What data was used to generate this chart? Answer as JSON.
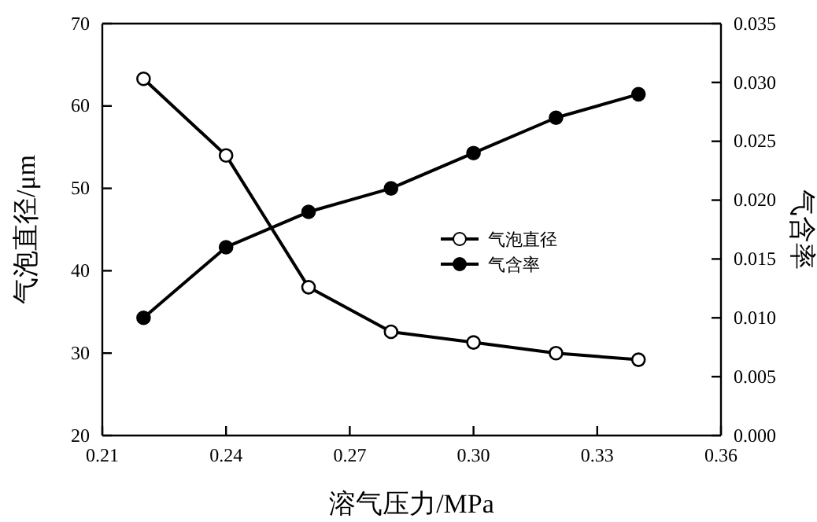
{
  "chart_data": {
    "type": "line",
    "xlabel": "溶气压力/MPa",
    "ylabel": "气泡直径/μm",
    "y2label": "气含率",
    "x": [
      0.22,
      0.24,
      0.26,
      0.28,
      0.3,
      0.32,
      0.34
    ],
    "series": [
      {
        "name": "气泡直径",
        "color": "#000000",
        "values": [
          63.3,
          54,
          38,
          32.6,
          31.3,
          30,
          29.2
        ]
      },
      {
        "name": "气含率",
        "color": "#000000",
        "values": [
          0.01,
          0.016,
          0.019,
          0.021,
          0.024,
          0.027,
          0.029
        ],
        "axis": "y2"
      }
    ],
    "xlim": [
      0.21,
      0.36
    ],
    "xticks": [
      0.21,
      0.24,
      0.27,
      {
        "value": 0.3,
        "label": "0.30"
      },
      0.33,
      0.36
    ],
    "ylim": [
      20,
      70
    ],
    "yticks": [
      20,
      30,
      40,
      50,
      60,
      70
    ],
    "y2lim": [
      0,
      0.035
    ],
    "y2ticks": [
      {
        "value": 0,
        "label": "0.000"
      },
      0.005,
      {
        "value": 0.01,
        "label": "0.010"
      },
      0.015,
      {
        "value": 0.02,
        "label": "0.020"
      },
      0.025,
      {
        "value": 0.03,
        "label": "0.030"
      },
      0.035
    ],
    "grid": false,
    "legend": "right",
    "marker": "circle",
    "line_style": "solid"
  }
}
